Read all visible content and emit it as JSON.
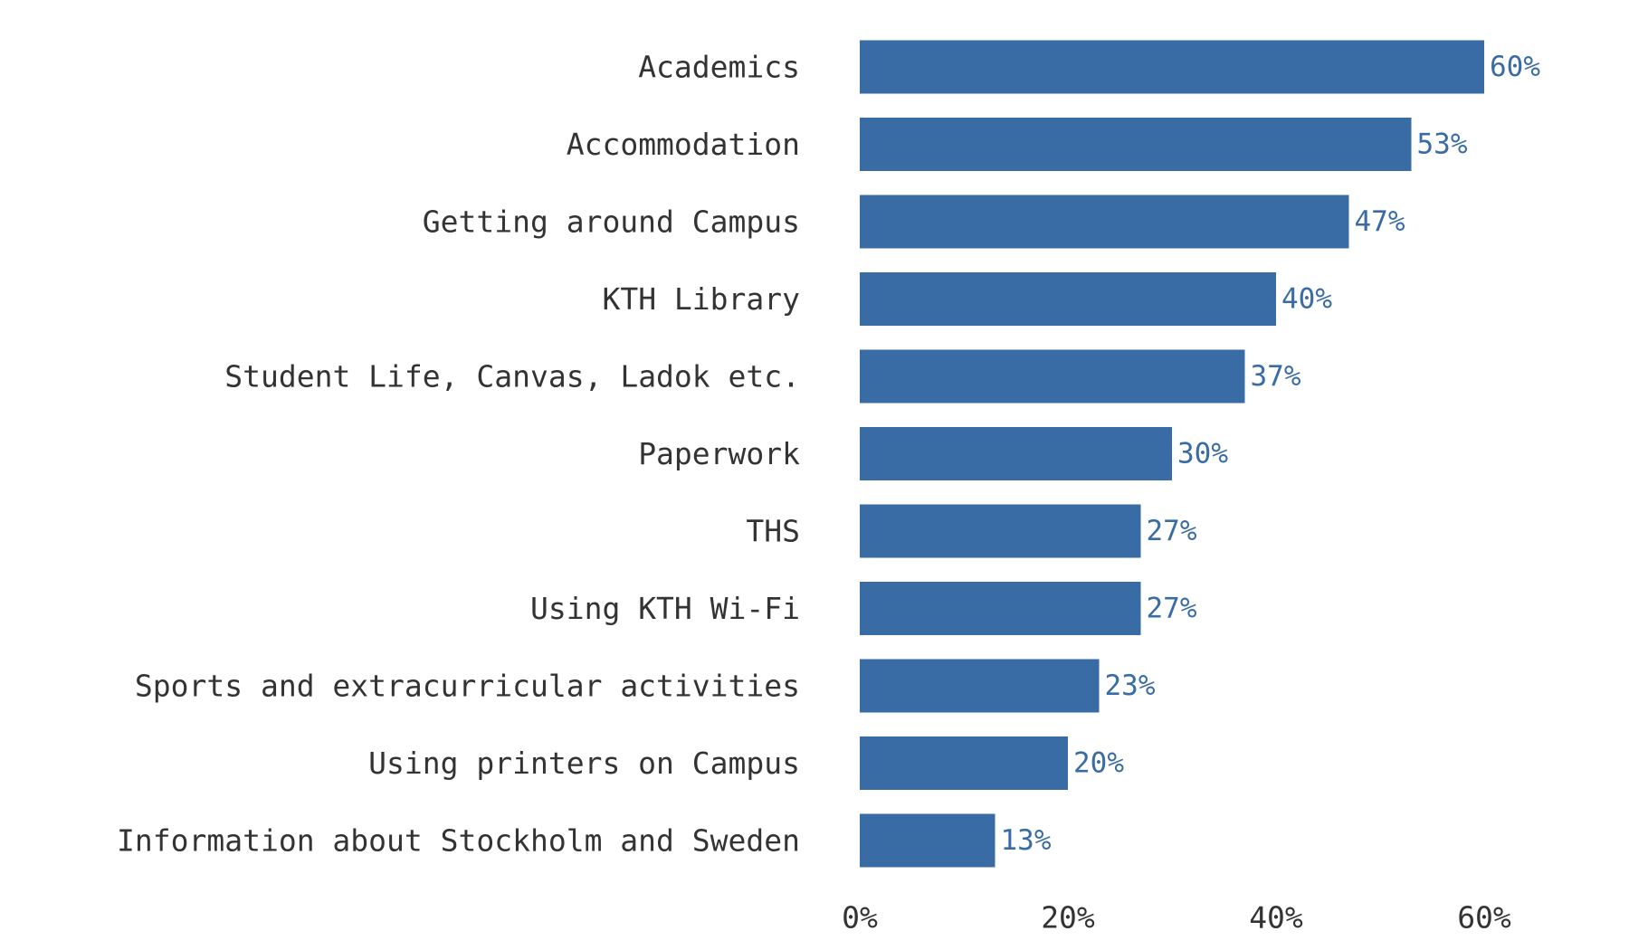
{
  "chart_data": {
    "type": "bar",
    "orientation": "horizontal",
    "title": "",
    "xlabel": "",
    "ylabel": "",
    "categories": [
      "Academics",
      "Accommodation",
      "Getting around Campus",
      "KTH Library",
      "Student Life, Canvas, Ladok etc.",
      "Paperwork",
      "THS",
      "Using KTH Wi-Fi",
      "Sports and extracurricular activities",
      "Using printers on Campus",
      "Information about Stockholm and Sweden"
    ],
    "values": [
      60,
      53,
      47,
      40,
      37,
      30,
      27,
      27,
      23,
      20,
      13
    ],
    "value_labels": [
      "60%",
      "53%",
      "47%",
      "40%",
      "37%",
      "30%",
      "27%",
      "27%",
      "23%",
      "20%",
      "13%"
    ],
    "xlim": [
      0,
      70
    ],
    "x_ticks": [
      0,
      20,
      40,
      60
    ],
    "x_tick_labels": [
      "0%",
      "20%",
      "40%",
      "60%"
    ],
    "grid": false,
    "legend": "none",
    "colors": {
      "bar": "#396CA5",
      "value_label": "#396CA5",
      "text": "#333333",
      "background": "#FFFFFF"
    }
  }
}
